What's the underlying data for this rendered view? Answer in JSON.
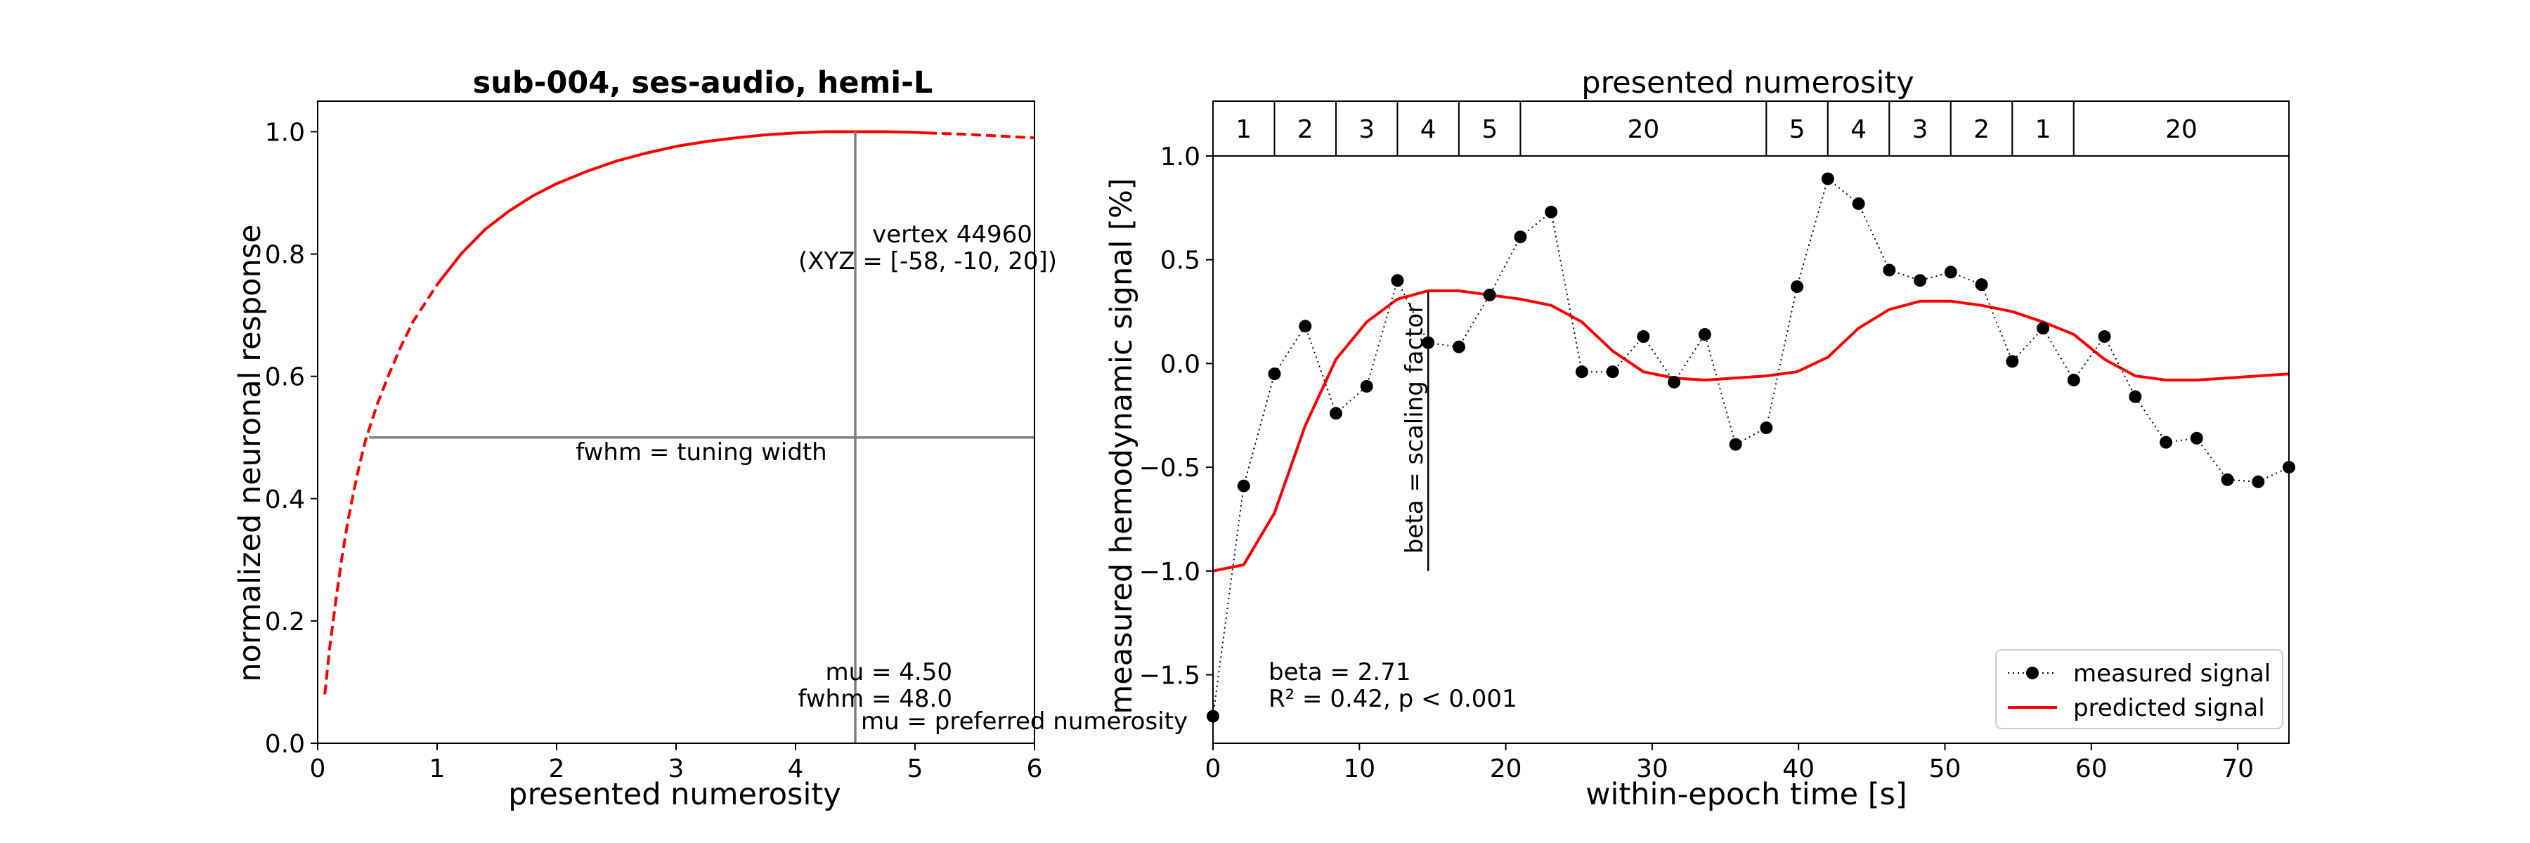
{
  "chart_data": [
    {
      "type": "line",
      "title": "sub-004, ses-audio, hemi-L",
      "xlabel": "presented numerosity",
      "ylabel": "normalized neuronal response",
      "xlim": [
        0,
        6
      ],
      "ylim": [
        0,
        1.05
      ],
      "xticks": [
        "0",
        "1",
        "2",
        "3",
        "4",
        "5",
        "6"
      ],
      "yticks": [
        "0.0",
        "0.2",
        "0.4",
        "0.6",
        "0.8",
        "1.0"
      ],
      "grid": false,
      "color": "#ff0000",
      "series": [
        {
          "style": "dashed",
          "x": [
            0.06,
            0.1,
            0.15,
            0.2,
            0.25,
            0.3,
            0.35,
            0.4,
            0.45,
            0.5,
            0.6,
            0.7,
            0.8,
            0.9,
            1.0
          ],
          "y": [
            0.08,
            0.155,
            0.23,
            0.3,
            0.36,
            0.41,
            0.455,
            0.495,
            0.525,
            0.555,
            0.605,
            0.65,
            0.69,
            0.72,
            0.75
          ]
        },
        {
          "style": "solid",
          "x": [
            1.0,
            1.2,
            1.4,
            1.6,
            1.8,
            2.0,
            2.25,
            2.5,
            2.75,
            3.0,
            3.25,
            3.5,
            3.75,
            4.0,
            4.25,
            4.5,
            4.75,
            5.0,
            5.1
          ],
          "y": [
            0.75,
            0.8,
            0.84,
            0.87,
            0.895,
            0.915,
            0.935,
            0.952,
            0.965,
            0.976,
            0.984,
            0.99,
            0.995,
            0.998,
            1.0,
            1.0,
            1.0,
            0.999,
            0.998
          ]
        },
        {
          "style": "dashed",
          "x": [
            5.1,
            5.4,
            5.7,
            6.0
          ],
          "y": [
            0.998,
            0.996,
            0.993,
            0.99
          ]
        }
      ],
      "guides": {
        "vertical_x": 4.5,
        "horizontal_y": 0.5,
        "horizontal_x_range": [
          0.43,
          6.0
        ]
      },
      "annotations": {
        "vertex_line1": "vertex 44960",
        "vertex_line2": "(XYZ = [-58, -10, 20])",
        "fwhm_label": "fwhm = tuning width",
        "mu_value": "mu = 4.50",
        "fwhm_value": "fwhm = 48.0",
        "mu_label": "mu = preferred numerosity"
      }
    },
    {
      "type": "line",
      "title": "presented numerosity",
      "xlabel": "within-epoch time [s]",
      "ylabel": "measured hemodynamic signal [%]",
      "xlim": [
        0,
        73.5
      ],
      "ylim": [
        -1.83,
        1.0
      ],
      "xticks": [
        "0",
        "10",
        "20",
        "30",
        "40",
        "50",
        "60",
        "70"
      ],
      "yticks": [
        "−1.5",
        "−1.0",
        "−0.5",
        "0.0",
        "0.5",
        "1.0"
      ],
      "grid": false,
      "numerosity_blocks": [
        {
          "label": "1",
          "start": 0,
          "end": 4.2
        },
        {
          "label": "2",
          "start": 4.2,
          "end": 8.4
        },
        {
          "label": "3",
          "start": 8.4,
          "end": 12.6
        },
        {
          "label": "4",
          "start": 12.6,
          "end": 16.8
        },
        {
          "label": "5",
          "start": 16.8,
          "end": 21.0
        },
        {
          "label": "20",
          "start": 21.0,
          "end": 37.8
        },
        {
          "label": "5",
          "start": 37.8,
          "end": 42.0
        },
        {
          "label": "4",
          "start": 42.0,
          "end": 46.2
        },
        {
          "label": "3",
          "start": 46.2,
          "end": 50.4
        },
        {
          "label": "2",
          "start": 50.4,
          "end": 54.6
        },
        {
          "label": "1",
          "start": 54.6,
          "end": 58.8
        },
        {
          "label": "20",
          "start": 58.8,
          "end": 73.5
        }
      ],
      "series": [
        {
          "name": "measured signal",
          "color": "#000000",
          "style": "dotted-markers",
          "x": [
            0,
            2.1,
            4.2,
            6.3,
            8.4,
            10.5,
            12.6,
            14.7,
            16.8,
            18.9,
            21.0,
            23.1,
            25.2,
            27.3,
            29.4,
            31.5,
            33.6,
            35.7,
            37.8,
            39.9,
            42.0,
            44.1,
            46.2,
            48.3,
            50.4,
            52.5,
            54.6,
            56.7,
            58.8,
            60.9,
            63.0,
            65.1,
            67.2,
            69.3,
            71.4,
            73.5
          ],
          "y": [
            -1.7,
            -0.59,
            -0.05,
            0.18,
            -0.24,
            -0.11,
            0.4,
            0.1,
            0.08,
            0.33,
            0.61,
            0.73,
            -0.04,
            -0.04,
            0.13,
            -0.09,
            0.14,
            -0.39,
            -0.31,
            0.37,
            0.89,
            0.77,
            0.45,
            0.4,
            0.44,
            0.38,
            0.01,
            0.17,
            -0.08,
            0.13,
            -0.16,
            -0.38,
            -0.36,
            -0.56,
            -0.57,
            -0.5
          ]
        },
        {
          "name": "predicted signal",
          "color": "#ff0000",
          "style": "solid",
          "x": [
            0,
            2.1,
            4.2,
            6.3,
            8.4,
            10.5,
            12.6,
            14.7,
            16.8,
            18.9,
            21.0,
            23.1,
            25.2,
            27.3,
            29.4,
            31.5,
            33.6,
            35.7,
            37.8,
            39.9,
            42.0,
            44.1,
            46.2,
            48.3,
            50.4,
            52.5,
            54.6,
            56.7,
            58.8,
            60.9,
            63.0,
            65.1,
            67.2,
            69.3,
            71.4,
            73.5
          ],
          "y": [
            -1.0,
            -0.97,
            -0.72,
            -0.3,
            0.02,
            0.2,
            0.31,
            0.35,
            0.35,
            0.33,
            0.31,
            0.28,
            0.2,
            0.06,
            -0.04,
            -0.07,
            -0.08,
            -0.07,
            -0.06,
            -0.04,
            0.03,
            0.17,
            0.26,
            0.3,
            0.3,
            0.28,
            0.25,
            0.2,
            0.14,
            0.02,
            -0.06,
            -0.08,
            -0.08,
            -0.07,
            -0.06,
            -0.05
          ]
        }
      ],
      "beta_bar": {
        "x": 14.7,
        "y_from": -1.0,
        "y_to": 0.35
      },
      "annotations": {
        "beta_bar_label": "beta = scaling factor",
        "beta_value": "beta = 2.71",
        "r2_value": "R² = 0.42, p < 0.001"
      },
      "legend": {
        "position": "lower right"
      }
    }
  ]
}
